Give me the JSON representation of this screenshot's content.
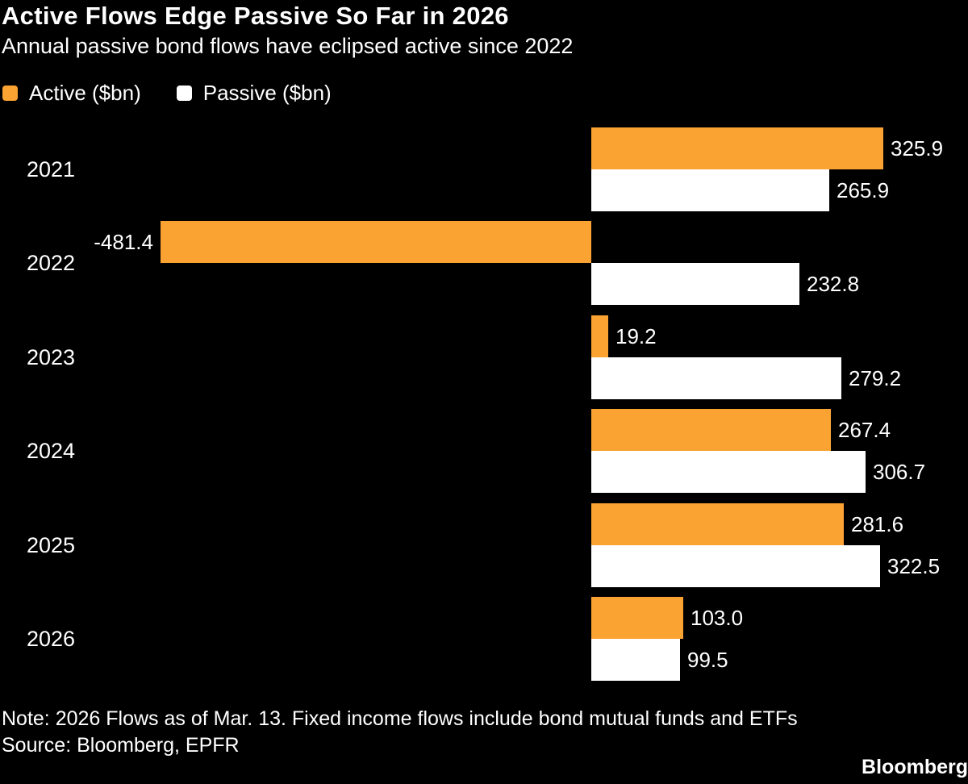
{
  "header": {
    "title": "Active Flows Edge Passive So Far in 2026",
    "subtitle": "Annual passive bond flows have eclipsed active since 2022"
  },
  "legend": [
    {
      "label": "Active ($bn)",
      "color": "#FAA333"
    },
    {
      "label": "Passive ($bn)",
      "color": "#FFFFFF"
    }
  ],
  "chart_data": {
    "type": "bar",
    "orientation": "horizontal",
    "title": "Active Flows Edge Passive So Far in 2026",
    "subtitle": "Annual passive bond flows have eclipsed active since 2022",
    "categories": [
      "2021",
      "2022",
      "2023",
      "2024",
      "2025",
      "2026"
    ],
    "series": [
      {
        "name": "Active ($bn)",
        "color": "#FAA333",
        "values": [
          325.9,
          -481.4,
          19.2,
          267.4,
          281.6,
          103.0
        ]
      },
      {
        "name": "Passive ($bn)",
        "color": "#FFFFFF",
        "values": [
          265.9,
          232.8,
          279.2,
          306.7,
          322.5,
          99.5
        ]
      }
    ],
    "value_label_decimals": 1,
    "xlim": [
      -481.4,
      325.9
    ],
    "grid": false,
    "legend_position": "top-left",
    "background": "#000000",
    "text_color": "#FFFFFF"
  },
  "footer": {
    "note": "Note: 2026 Flows as of Mar. 13. Fixed income flows include bond mutual funds and ETFs",
    "source": "Source: Bloomberg, EPFR",
    "brand": "Bloomberg"
  }
}
